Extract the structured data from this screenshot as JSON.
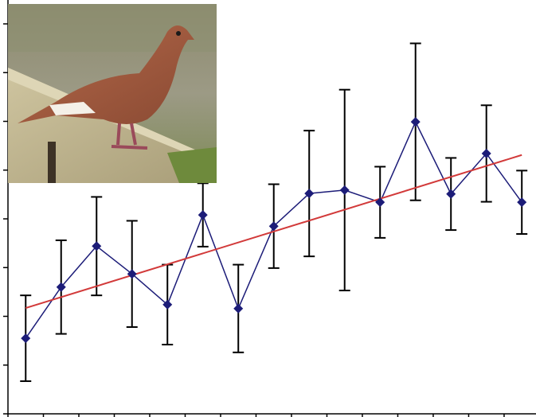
{
  "chart_data": {
    "type": "line",
    "x": [
      1,
      2,
      3,
      4,
      5,
      6,
      7,
      8,
      9,
      10,
      11,
      12,
      13,
      14,
      15
    ],
    "series": [
      {
        "color": "#1c1c78",
        "values": [
          1.55,
          2.6,
          3.44,
          2.87,
          2.24,
          4.08,
          2.16,
          3.85,
          4.52,
          4.59,
          4.34,
          5.99,
          4.51,
          5.34,
          4.34
        ],
        "errors": [
          0.88,
          0.96,
          1.01,
          1.09,
          0.82,
          0.65,
          0.9,
          0.86,
          1.29,
          2.06,
          0.73,
          1.61,
          0.74,
          0.99,
          0.65
        ]
      }
    ],
    "trend": {
      "color": "#d23a3a",
      "x": [
        1,
        15
      ],
      "values": [
        2.17,
        5.31
      ]
    },
    "xlim": [
      0.5,
      15.4
    ],
    "xticks": [
      0.5,
      1.5,
      2.5,
      3.5,
      4.5,
      5.5,
      6.5,
      7.5,
      8.5,
      9.5,
      10.5,
      11.5,
      12.5,
      13.5,
      14.5
    ],
    "ylim": [
      0,
      8
    ],
    "yticks": [
      0,
      1,
      2,
      3,
      4,
      5,
      6,
      7,
      8
    ],
    "grid": false
  }
}
